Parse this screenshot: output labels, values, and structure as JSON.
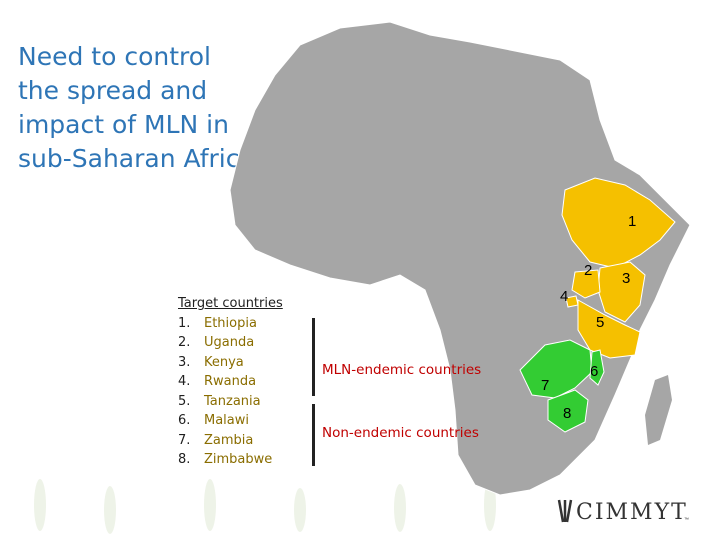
{
  "title": "Need to control the spread and impact of MLN in sub-Saharan Africa",
  "legend": {
    "heading": "Target countries",
    "countries": [
      {
        "num": "1.",
        "name": "Ethiopia"
      },
      {
        "num": "2.",
        "name": "Uganda"
      },
      {
        "num": "3.",
        "name": "Kenya"
      },
      {
        "num": "4.",
        "name": "Rwanda"
      },
      {
        "num": "5.",
        "name": "Tanzania"
      },
      {
        "num": "6.",
        "name": "Malawi"
      },
      {
        "num": "7.",
        "name": "Zambia"
      },
      {
        "num": "8.",
        "name": "Zimbabwe"
      }
    ]
  },
  "categories": {
    "endemic": "MLN-endemic countries",
    "non_endemic": "Non-endemic countries"
  },
  "map_labels": [
    "1",
    "2",
    "3",
    "4",
    "5",
    "6",
    "7",
    "8"
  ],
  "colors": {
    "endemic": "#f5c000",
    "non_endemic": "#33cc33",
    "land": "#a6a6a6",
    "title": "#2e75b6",
    "legend_names": "#8a6d00"
  },
  "logo": {
    "text": "CIMMYT",
    "mark": "™"
  }
}
